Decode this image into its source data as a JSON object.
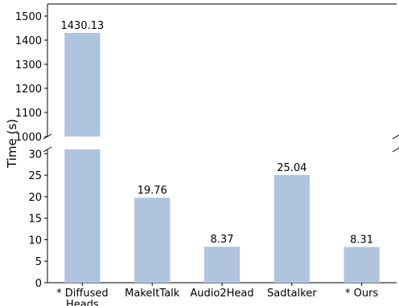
{
  "chart_data": {
    "type": "bar",
    "broken_axis": true,
    "categories": [
      "* Diffused\nHeads",
      "MakeItTalk",
      "Audio2Head",
      "Sadtalker",
      "* Ours"
    ],
    "values": [
      1430.13,
      19.76,
      8.37,
      25.04,
      8.31
    ],
    "data_labels": [
      "1430.13",
      "19.76",
      "8.37",
      "25.04",
      "8.31"
    ],
    "ylabel": "Time (s)",
    "upper_ylim": [
      1000,
      1550
    ],
    "upper_yticks": [
      1000,
      1100,
      1200,
      1300,
      1400,
      1500
    ],
    "lower_ylim": [
      0,
      31
    ],
    "lower_yticks": [
      0,
      5,
      10,
      15,
      20,
      25,
      30
    ],
    "grid": false,
    "colors": {
      "bar": "#b0c4de",
      "axis": "#000000"
    }
  }
}
